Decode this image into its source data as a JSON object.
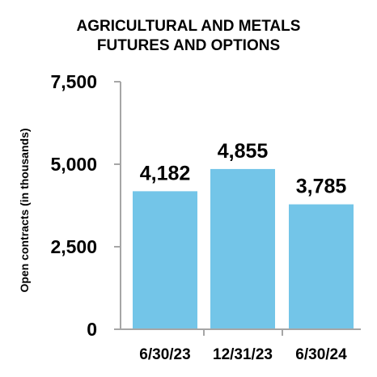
{
  "chart_data": {
    "type": "bar",
    "title_lines": [
      "AGRICULTURAL AND METALS",
      "FUTURES AND OPTIONS"
    ],
    "xlabel": "",
    "ylabel": "Open contracts (in thousands)",
    "categories": [
      "6/30/23",
      "12/31/23",
      "6/30/24"
    ],
    "values": [
      4182,
      4855,
      3785
    ],
    "data_labels": [
      "4,182",
      "4,855",
      "3,785"
    ],
    "ylim": [
      0,
      7500
    ],
    "yticks": [
      0,
      2500,
      5000,
      7500
    ],
    "ytick_labels": [
      "0",
      "2,500",
      "5,000",
      "7,500"
    ],
    "grid": false,
    "legend": "none",
    "bar_color": "#73c5e8",
    "axis_color": "#a6a6a6"
  }
}
